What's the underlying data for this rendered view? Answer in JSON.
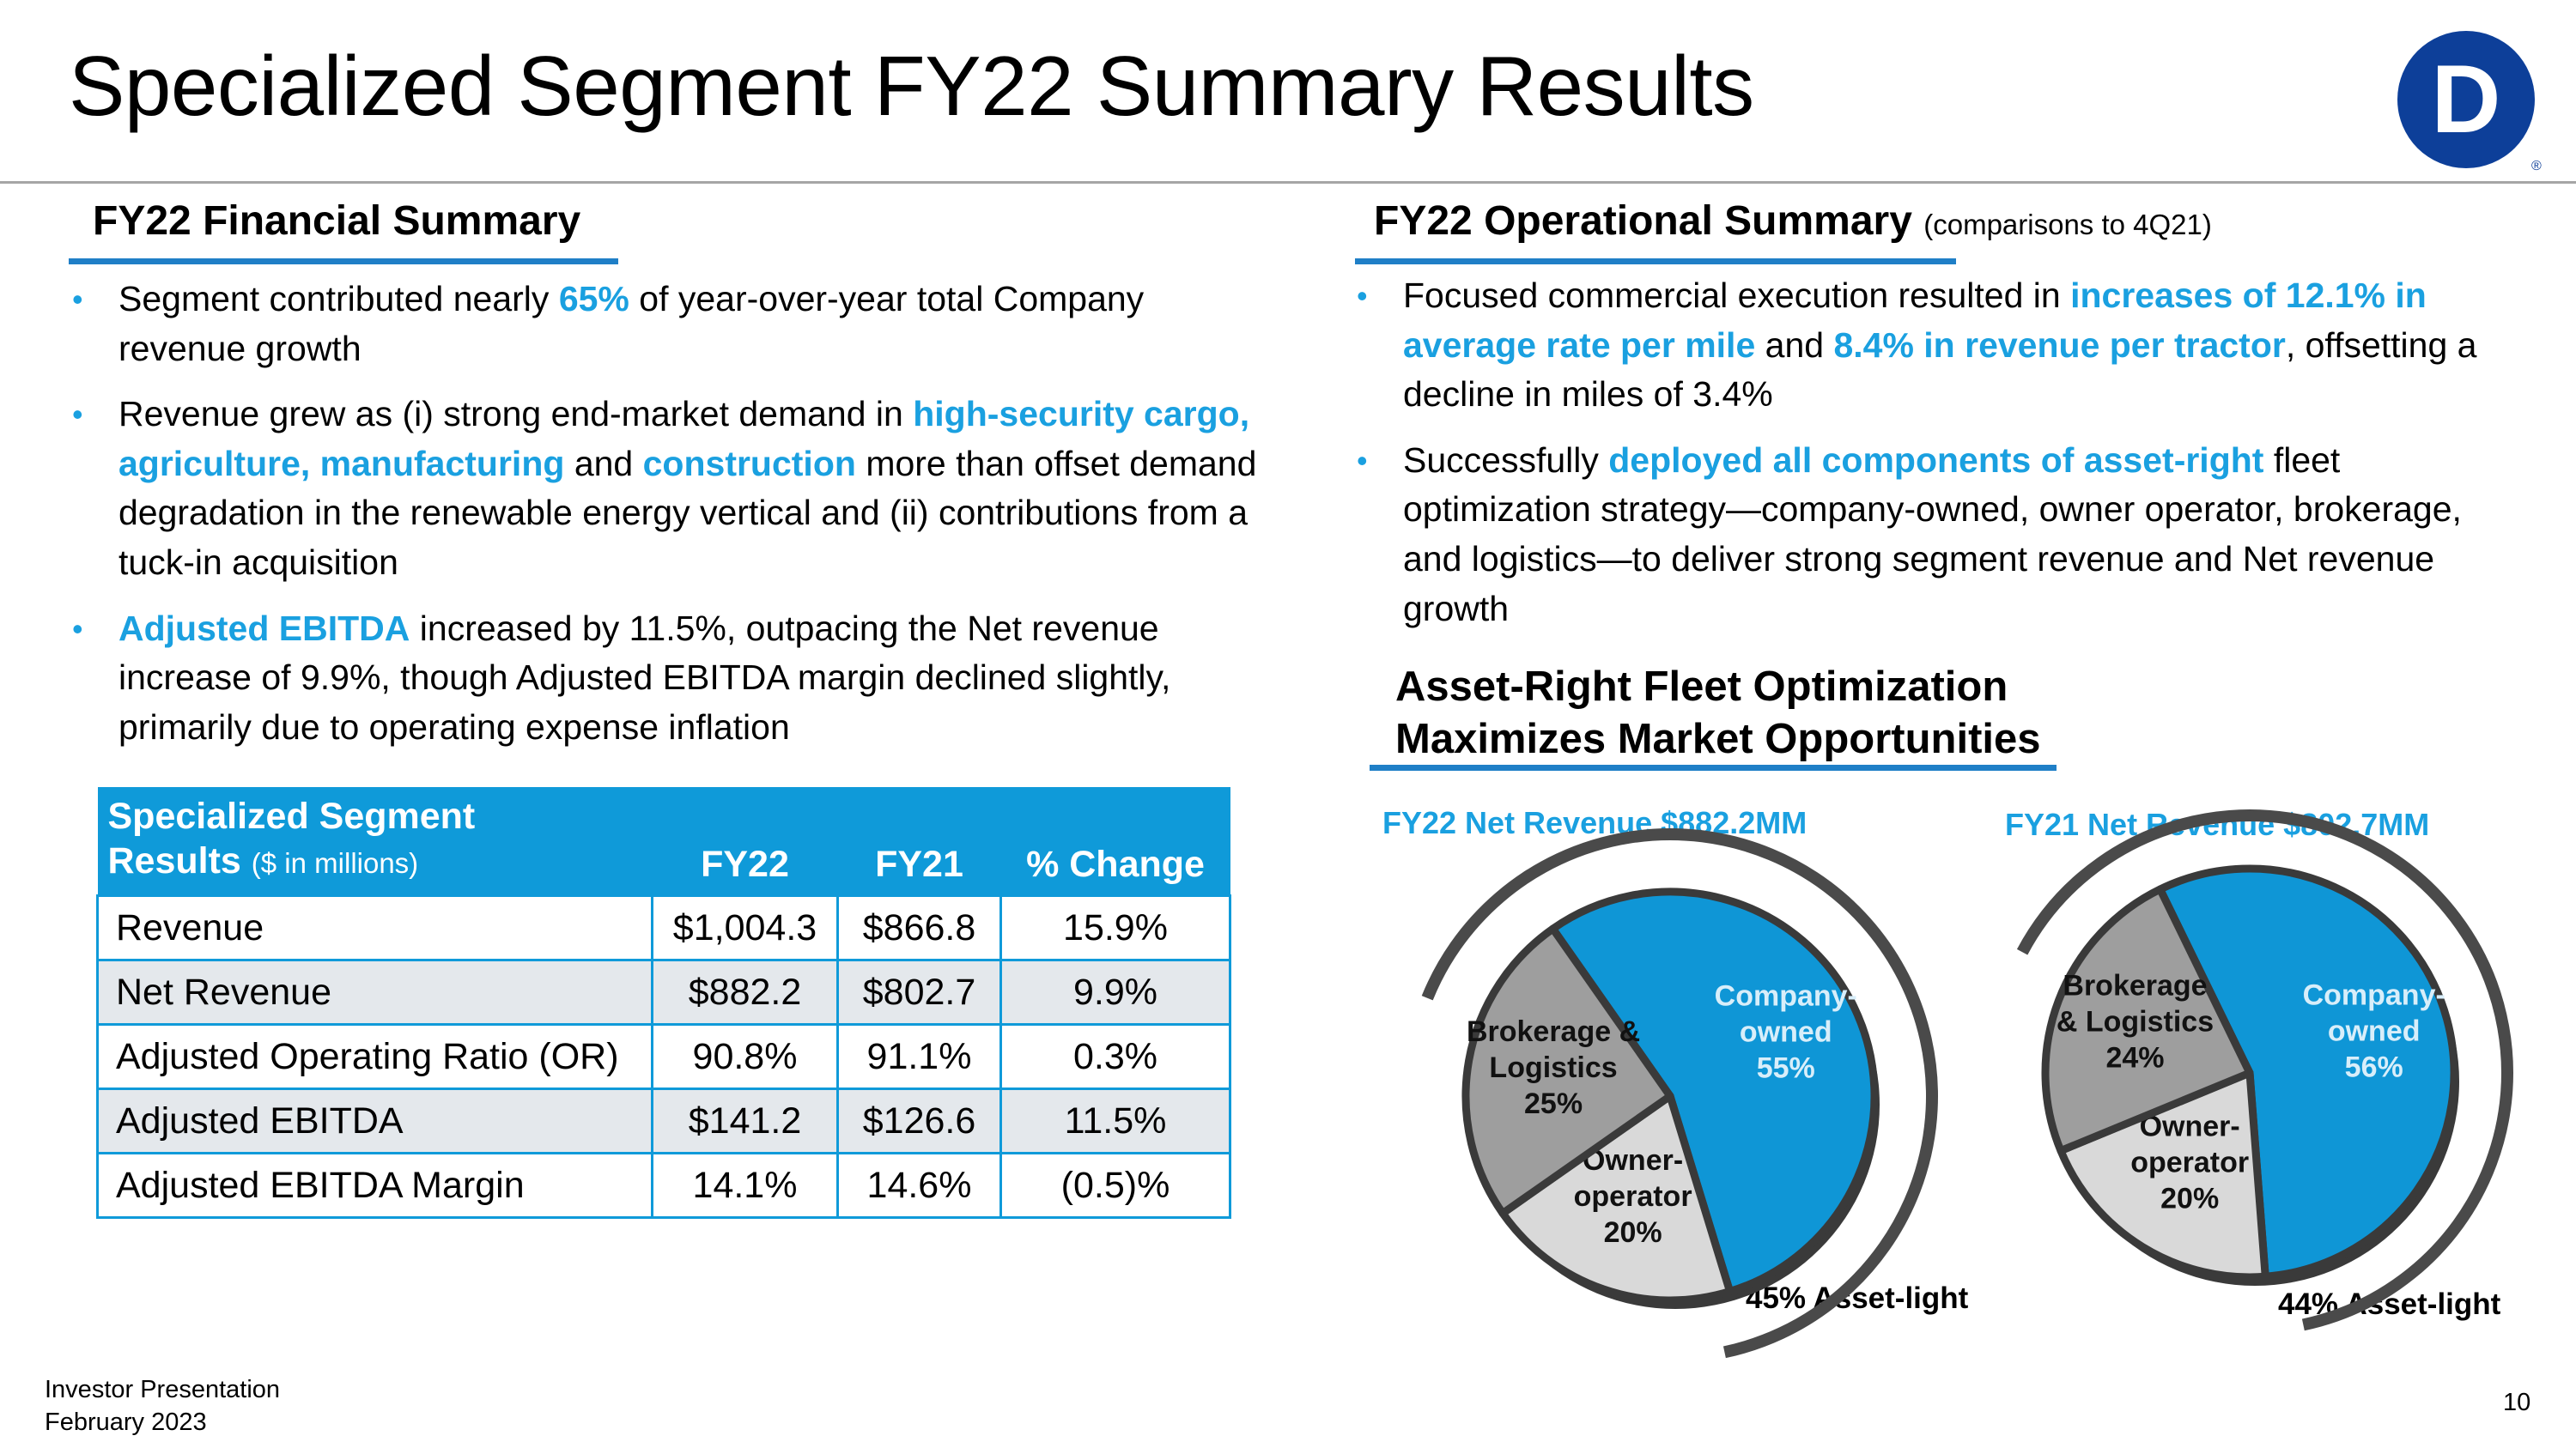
{
  "title": "Specialized Segment FY22 Summary Results",
  "colors": {
    "accent": "#1aa0e0",
    "header_blue": "#0f9ad9",
    "rule_blue": "#1f7fc7",
    "logo_blue": "#0d3f99"
  },
  "logo": {
    "letter": "D",
    "mark": "®"
  },
  "financial": {
    "heading": "FY22 Financial Summary",
    "bullets": [
      {
        "segments": [
          {
            "t": "Segment contributed nearly "
          },
          {
            "t": "65%",
            "hl": true
          },
          {
            "t": " of year-over-year total Company revenue growth"
          }
        ]
      },
      {
        "segments": [
          {
            "t": "Revenue grew as (i) strong end-market demand in "
          },
          {
            "t": "high-security cargo, agriculture, manufacturing",
            "hl": true
          },
          {
            "t": " and "
          },
          {
            "t": "construction",
            "hl": true
          },
          {
            "t": " more than offset demand degradation in the renewable energy vertical and (ii) contributions from a tuck-in acquisition"
          }
        ]
      },
      {
        "segments": [
          {
            "t": "Adjusted EBITDA",
            "hl": true
          },
          {
            "t": " increased by 11.5%, outpacing the Net revenue increase of 9.9%, though Adjusted EBITDA margin declined slightly, primarily due to operating expense inflation"
          }
        ]
      }
    ]
  },
  "table": {
    "header": {
      "title_line1": "Specialized Segment",
      "title_line2": "Results",
      "unit": "($ in millions)",
      "col1": "FY22",
      "col2": "FY21",
      "col3": "% Change"
    },
    "rows": [
      {
        "label": "Revenue",
        "fy22": "$1,004.3",
        "fy21": "$866.8",
        "chg": "15.9%"
      },
      {
        "label": "Net Revenue",
        "fy22": "$882.2",
        "fy21": "$802.7",
        "chg": "9.9%"
      },
      {
        "label": "Adjusted Operating Ratio (OR)",
        "fy22": "90.8%",
        "fy21": "91.1%",
        "chg": "0.3%"
      },
      {
        "label": "Adjusted EBITDA",
        "fy22": "$141.2",
        "fy21": "$126.6",
        "chg": "11.5%"
      },
      {
        "label": "Adjusted EBITDA Margin",
        "fy22": "14.1%",
        "fy21": "14.6%",
        "chg": "(0.5)%"
      }
    ]
  },
  "operational": {
    "heading": "FY22 Operational Summary",
    "note": "(comparisons to 4Q21)",
    "bullets": [
      {
        "segments": [
          {
            "t": "Focused commercial execution resulted in "
          },
          {
            "t": "increases of 12.1% in average rate per mile",
            "hl": true
          },
          {
            "t": " and "
          },
          {
            "t": "8.4% in revenue per tractor",
            "hl": true
          },
          {
            "t": ", offsetting a decline in miles of 3.4%"
          }
        ]
      },
      {
        "segments": [
          {
            "t": "Successfully "
          },
          {
            "t": "deployed all components of asset-right",
            "hl": true
          },
          {
            "t": " fleet optimization strategy—company-owned, owner operator, brokerage, and logistics—to deliver strong segment revenue and Net revenue growth"
          }
        ]
      }
    ],
    "subheading_line1": "Asset-Right Fleet Optimization",
    "subheading_line2": "Maximizes Market Opportunities"
  },
  "chart_data": [
    {
      "type": "pie",
      "title": "FY22 Net Revenue $882.2MM",
      "slices": [
        {
          "label_lines": [
            "Company-",
            "owned",
            "55%"
          ],
          "name": "Company-owned",
          "value": 55,
          "color": "#0f96d6"
        },
        {
          "label_lines": [
            "Owner-",
            "operator",
            "20%"
          ],
          "name": "Owner-operator",
          "value": 20,
          "color": "#d9d9d9"
        },
        {
          "label_lines": [
            "Brokerage &",
            "Logistics",
            "25%"
          ],
          "name": "Brokerage & Logistics",
          "value": 25,
          "color": "#9e9e9e"
        }
      ],
      "annotation": "45% Asset-light"
    },
    {
      "type": "pie",
      "title": "FY21 Net Revenue $802.7MM",
      "slices": [
        {
          "label_lines": [
            "Company-",
            "owned",
            "56%"
          ],
          "name": "Company-owned",
          "value": 56,
          "color": "#0f96d6"
        },
        {
          "label_lines": [
            "Owner-",
            "operator",
            "20%"
          ],
          "name": "Owner-operator",
          "value": 20,
          "color": "#d9d9d9"
        },
        {
          "label_lines": [
            "Brokerage",
            "& Logistics",
            "24%"
          ],
          "name": "Brokerage & Logistics",
          "value": 24,
          "color": "#9e9e9e"
        }
      ],
      "annotation": "44% Asset-light"
    }
  ],
  "footer": {
    "line1": "Investor Presentation",
    "line2": "February 2023",
    "page": "10"
  }
}
